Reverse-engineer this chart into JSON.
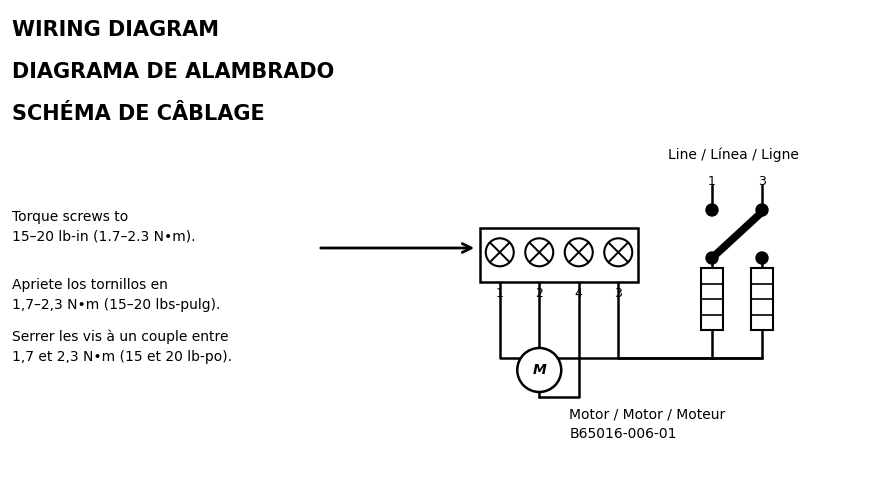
{
  "bg_color": "#ffffff",
  "title_lines": [
    "WIRING DIAGRAM",
    "DIAGRAMA DE ALAMBRADO",
    "SCHÉMA DE CÂBLAGE"
  ],
  "title_fontsize": 15,
  "title_fontweight": "bold",
  "line_label": "Line / Línea / Ligne",
  "torque_text": "Torque screws to\n15–20 lb-in (1.7–2.3 N•m).",
  "apriete_text": "Apriete los tornillos en\n1,7–2,3 N•m (15–20 lbs-pulg).",
  "serrer_text": "Serrer les vis à un couple entre\n1,7 et 2,3 N•m (15 et 20 lb-po).",
  "body_fontsize": 10,
  "motor_label": "Motor / Motor / Moteur\nB65016-006-01",
  "diagram_color": "#000000"
}
